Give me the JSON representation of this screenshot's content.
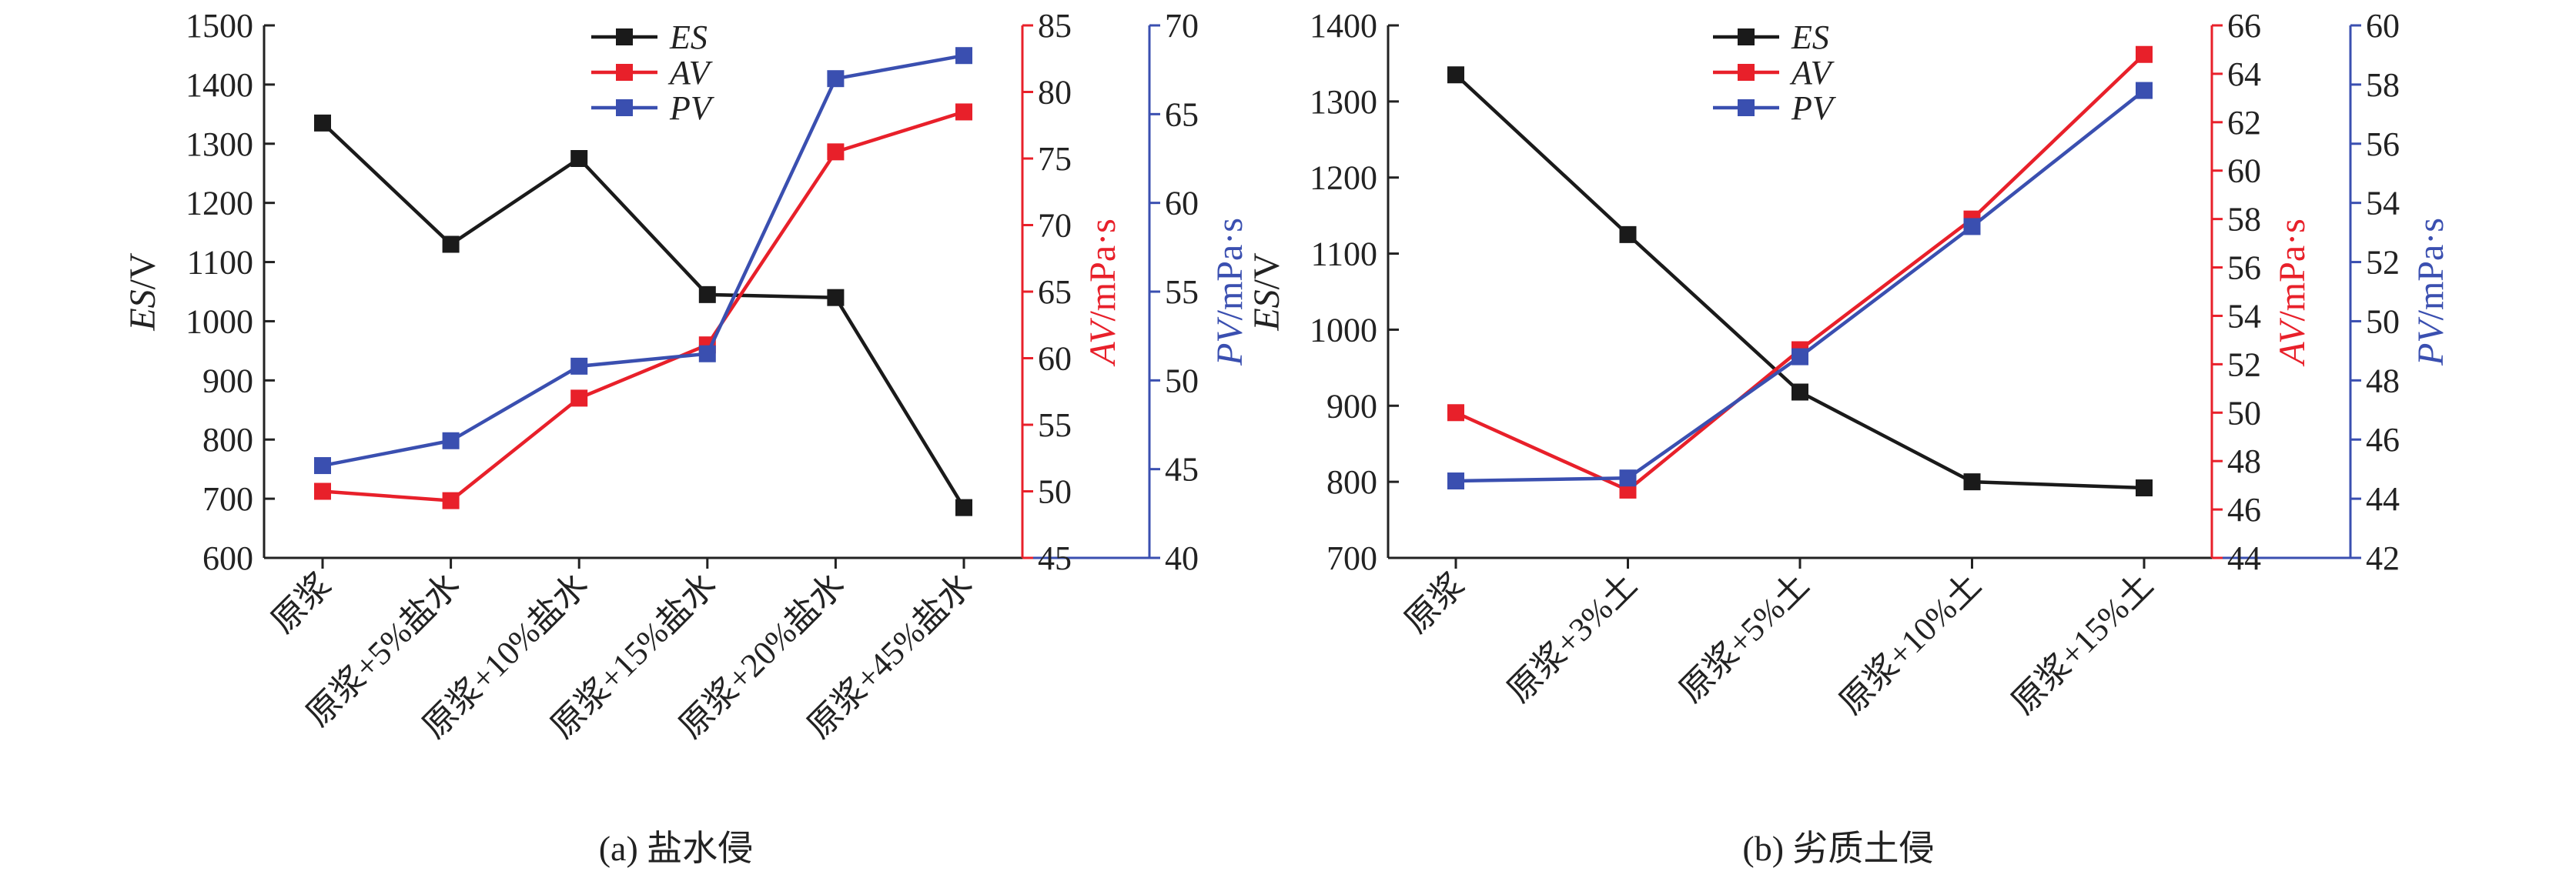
{
  "chart_data": [
    {
      "type": "line",
      "caption": "(a) 盐水侵",
      "categories": [
        "原浆",
        "原浆+5%盐水",
        "原浆+10%盐水",
        "原浆+15%盐水",
        "原浆+20%盐水",
        "原浆+45%盐水"
      ],
      "ylabel_left": "ES/V",
      "ylabel_right1": "AV/mPa·s",
      "ylabel_right2": "PV/mPa·s",
      "y_left": {
        "min": 600,
        "max": 1500,
        "step": 100
      },
      "y_right1": {
        "min": 45,
        "max": 85,
        "step": 5
      },
      "y_right2": {
        "min": 40,
        "max": 70,
        "step": 5
      },
      "legend_position": "top-center",
      "series": [
        {
          "name": "ES",
          "axis": "left",
          "color": "#1a1a1a",
          "values": [
            1335,
            1130,
            1275,
            1045,
            1040,
            685
          ]
        },
        {
          "name": "AV",
          "axis": "right1",
          "color": "#e8202a",
          "values": [
            50,
            49.3,
            57,
            61,
            75.5,
            78.5
          ]
        },
        {
          "name": "PV",
          "axis": "right2",
          "color": "#3a4fb0",
          "values": [
            45.2,
            46.6,
            50.8,
            51.5,
            67,
            68.3
          ]
        }
      ]
    },
    {
      "type": "line",
      "caption": "(b) 劣质土侵",
      "categories": [
        "原浆",
        "原浆+3%土",
        "原浆+5%土",
        "原浆+10%土",
        "原浆+15%土"
      ],
      "ylabel_left": "ES/V",
      "ylabel_right1": "AV/mPa·s",
      "ylabel_right2": "PV/mPa·s",
      "y_left": {
        "min": 700,
        "max": 1400,
        "step": 100
      },
      "y_right1": {
        "min": 44,
        "max": 66,
        "step": 2
      },
      "y_right2": {
        "min": 42,
        "max": 60,
        "step": 2
      },
      "legend_position": "top-center",
      "series": [
        {
          "name": "ES",
          "axis": "left",
          "color": "#1a1a1a",
          "values": [
            1335,
            1125,
            918,
            800,
            792
          ]
        },
        {
          "name": "AV",
          "axis": "right1",
          "color": "#e8202a",
          "values": [
            50,
            46.8,
            52.6,
            58,
            64.8
          ]
        },
        {
          "name": "PV",
          "axis": "right2",
          "color": "#3a4fb0",
          "values": [
            44.6,
            44.7,
            48.8,
            53.2,
            57.8
          ]
        }
      ]
    }
  ]
}
